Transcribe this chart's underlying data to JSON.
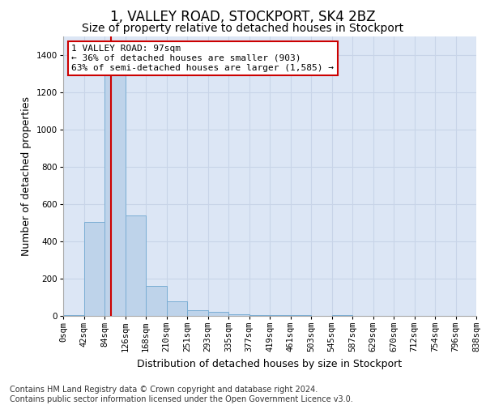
{
  "title": "1, VALLEY ROAD, STOCKPORT, SK4 2BZ",
  "subtitle": "Size of property relative to detached houses in Stockport",
  "xlabel": "Distribution of detached houses by size in Stockport",
  "ylabel": "Number of detached properties",
  "bins": [
    "0sqm",
    "42sqm",
    "84sqm",
    "126sqm",
    "168sqm",
    "210sqm",
    "251sqm",
    "293sqm",
    "335sqm",
    "377sqm",
    "419sqm",
    "461sqm",
    "503sqm",
    "545sqm",
    "587sqm",
    "629sqm",
    "670sqm",
    "712sqm",
    "754sqm",
    "796sqm",
    "838sqm"
  ],
  "bar_values": [
    5,
    505,
    1390,
    540,
    160,
    80,
    32,
    20,
    10,
    5,
    5,
    5,
    2,
    5,
    2,
    2,
    2,
    2,
    2,
    2
  ],
  "bar_color": "#bed3ea",
  "bar_edge_color": "#7aadd4",
  "vline_x_bin": 2,
  "vline_color": "#cc0000",
  "annotation_text": "1 VALLEY ROAD: 97sqm\n← 36% of detached houses are smaller (903)\n63% of semi-detached houses are larger (1,585) →",
  "annotation_box_color": "#ffffff",
  "annotation_box_edge": "#cc0000",
  "ylim": [
    0,
    1500
  ],
  "yticks": [
    0,
    200,
    400,
    600,
    800,
    1000,
    1200,
    1400
  ],
  "grid_color": "#c8d4e8",
  "background_color": "#dce6f5",
  "footnote": "Contains HM Land Registry data © Crown copyright and database right 2024.\nContains public sector information licensed under the Open Government Licence v3.0.",
  "title_fontsize": 12,
  "subtitle_fontsize": 10,
  "axis_label_fontsize": 9,
  "tick_fontsize": 7.5,
  "annotation_fontsize": 8,
  "footnote_fontsize": 7
}
